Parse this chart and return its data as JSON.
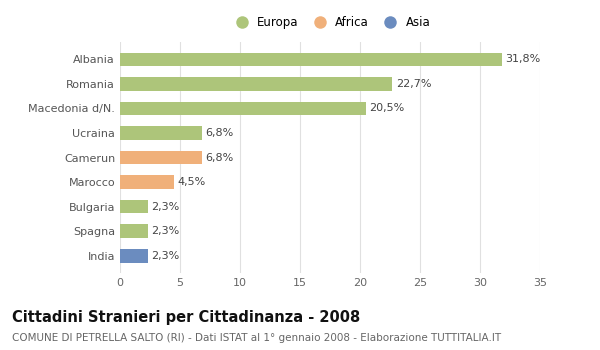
{
  "categories": [
    "Albania",
    "Romania",
    "Macedonia d/N.",
    "Ucraina",
    "Camerun",
    "Marocco",
    "Bulgaria",
    "Spagna",
    "India"
  ],
  "values": [
    31.8,
    22.7,
    20.5,
    6.8,
    6.8,
    4.5,
    2.3,
    2.3,
    2.3
  ],
  "labels": [
    "31,8%",
    "22,7%",
    "20,5%",
    "6,8%",
    "6,8%",
    "4,5%",
    "2,3%",
    "2,3%",
    "2,3%"
  ],
  "colors": [
    "#adc57a",
    "#adc57a",
    "#adc57a",
    "#adc57a",
    "#f0b07a",
    "#f0b07a",
    "#adc57a",
    "#adc57a",
    "#6b8cbf"
  ],
  "legend_labels": [
    "Europa",
    "Africa",
    "Asia"
  ],
  "legend_colors": [
    "#adc57a",
    "#f0b07a",
    "#6b8cbf"
  ],
  "xlim": [
    0,
    35
  ],
  "xticks": [
    0,
    5,
    10,
    15,
    20,
    25,
    30,
    35
  ],
  "title": "Cittadini Stranieri per Cittadinanza - 2008",
  "subtitle": "COMUNE DI PETRELLA SALTO (RI) - Dati ISTAT al 1° gennaio 2008 - Elaborazione TUTTITALIA.IT",
  "background_color": "#ffffff",
  "grid_color": "#e0e0e0",
  "bar_height": 0.55,
  "label_fontsize": 8,
  "ytick_fontsize": 8,
  "xtick_fontsize": 8,
  "title_fontsize": 10.5,
  "subtitle_fontsize": 7.5
}
